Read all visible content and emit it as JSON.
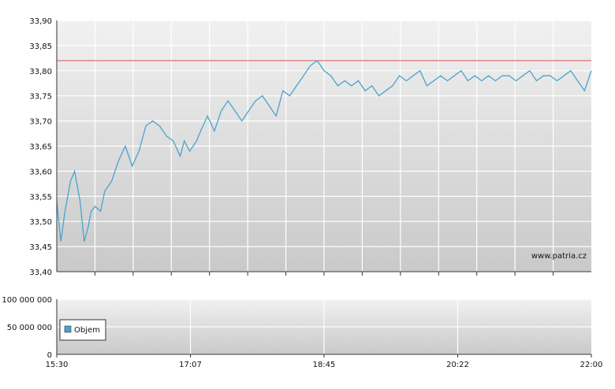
{
  "chart_data": [
    {
      "type": "line",
      "y_ticks": [
        "33,40",
        "33,45",
        "33,50",
        "33,55",
        "33,60",
        "33,65",
        "33,70",
        "33,75",
        "33,80",
        "33,85",
        "33,90"
      ],
      "ylim": [
        33.4,
        33.9
      ],
      "xlim": [
        "15:30",
        "22:00"
      ],
      "reference_line": 33.82,
      "watermark": "www.patria.cz",
      "grid": true,
      "series": [
        {
          "color": "#4aa3cf",
          "x": [
            "15:30",
            "15:33",
            "15:36",
            "15:40",
            "15:43",
            "15:47",
            "15:50",
            "15:53",
            "15:55",
            "15:58",
            "16:02",
            "16:05",
            "16:10",
            "16:15",
            "16:20",
            "16:25",
            "16:30",
            "16:35",
            "16:40",
            "16:45",
            "16:50",
            "16:55",
            "17:00",
            "17:03",
            "17:07",
            "17:12",
            "17:15",
            "17:20",
            "17:25",
            "17:30",
            "17:35",
            "17:40",
            "17:45",
            "17:50",
            "17:55",
            "18:00",
            "18:05",
            "18:10",
            "18:15",
            "18:20",
            "18:25",
            "18:30",
            "18:35",
            "18:40",
            "18:45",
            "18:50",
            "18:55",
            "19:00",
            "19:05",
            "19:10",
            "19:15",
            "19:20",
            "19:25",
            "19:30",
            "19:35",
            "19:40",
            "19:45",
            "19:50",
            "19:55",
            "20:00",
            "20:05",
            "20:10",
            "20:15",
            "20:20",
            "20:25",
            "20:30",
            "20:35",
            "20:40",
            "20:45",
            "20:50",
            "20:55",
            "21:00",
            "21:05",
            "21:10",
            "21:15",
            "21:20",
            "21:25",
            "21:30",
            "21:35",
            "21:40",
            "21:45",
            "21:50",
            "21:55",
            "22:00"
          ],
          "values": [
            33.54,
            33.46,
            33.52,
            33.58,
            33.6,
            33.54,
            33.46,
            33.49,
            33.52,
            33.53,
            33.52,
            33.56,
            33.58,
            33.62,
            33.65,
            33.61,
            33.64,
            33.69,
            33.7,
            33.69,
            33.67,
            33.66,
            33.63,
            33.66,
            33.64,
            33.66,
            33.68,
            33.71,
            33.68,
            33.72,
            33.74,
            33.72,
            33.7,
            33.72,
            33.74,
            33.75,
            33.73,
            33.71,
            33.76,
            33.75,
            33.77,
            33.79,
            33.81,
            33.82,
            33.8,
            33.79,
            33.77,
            33.78,
            33.77,
            33.78,
            33.76,
            33.77,
            33.75,
            33.76,
            33.77,
            33.79,
            33.78,
            33.79,
            33.8,
            33.77,
            33.78,
            33.79,
            33.78,
            33.79,
            33.8,
            33.78,
            33.79,
            33.78,
            33.79,
            33.78,
            33.79,
            33.79,
            33.78,
            33.79,
            33.8,
            33.78,
            33.79,
            33.79,
            33.78,
            33.79,
            33.8,
            33.78,
            33.76,
            33.8
          ]
        }
      ]
    },
    {
      "type": "bar",
      "y_ticks": [
        "0",
        "50 000 000",
        "100 000 000"
      ],
      "ylim": [
        0,
        100000000
      ],
      "x_ticks": [
        "15:30",
        "17:07",
        "18:45",
        "20:22",
        "22:00"
      ],
      "legend": {
        "label": "Objem",
        "color": "#4aa3cf",
        "position": "bottom-left"
      },
      "grid": true,
      "values": []
    }
  ]
}
